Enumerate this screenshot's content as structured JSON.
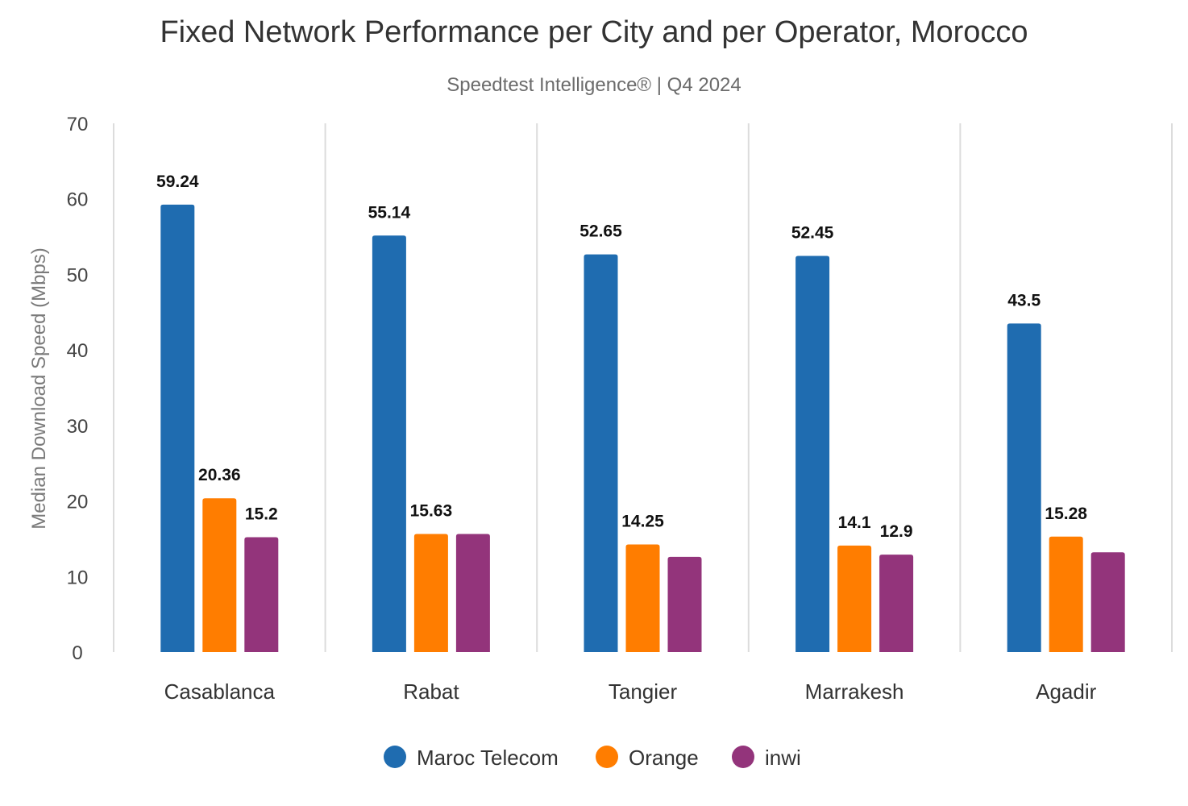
{
  "chart_data": {
    "type": "bar",
    "title": "Fixed Network Performance per City and per Operator, Morocco",
    "subtitle": "Speedtest Intelligence® | Q4 2024",
    "ylabel": "Median Download Speed (Mbps)",
    "xlabel": "",
    "ylim": [
      0,
      70
    ],
    "yticks": [
      "0",
      "10",
      "20",
      "30",
      "40",
      "50",
      "60",
      "70"
    ],
    "categories": [
      "Casablanca",
      "Rabat",
      "Tangier",
      "Marrakesh",
      "Agadir"
    ],
    "series": [
      {
        "name": "Maroc Telecom",
        "color": "#1f6cb0",
        "values": [
          59.24,
          55.14,
          52.65,
          52.45,
          43.5
        ],
        "labels": [
          "59.24",
          "55.14",
          "52.65",
          "52.45",
          "43.5"
        ]
      },
      {
        "name": "Orange",
        "color": "#ff7d00",
        "values": [
          20.36,
          15.63,
          14.25,
          14.1,
          15.28
        ],
        "labels": [
          "20.36",
          "15.63",
          "14.25",
          "14.1",
          "15.28"
        ]
      },
      {
        "name": "inwi",
        "color": "#93347b",
        "values": [
          15.2,
          15.63,
          12.6,
          12.9,
          13.2
        ],
        "labels": [
          "15.2",
          "",
          "",
          "12.9",
          ""
        ]
      }
    ],
    "grid": false,
    "category_separators": true,
    "legend_position": "bottom"
  }
}
